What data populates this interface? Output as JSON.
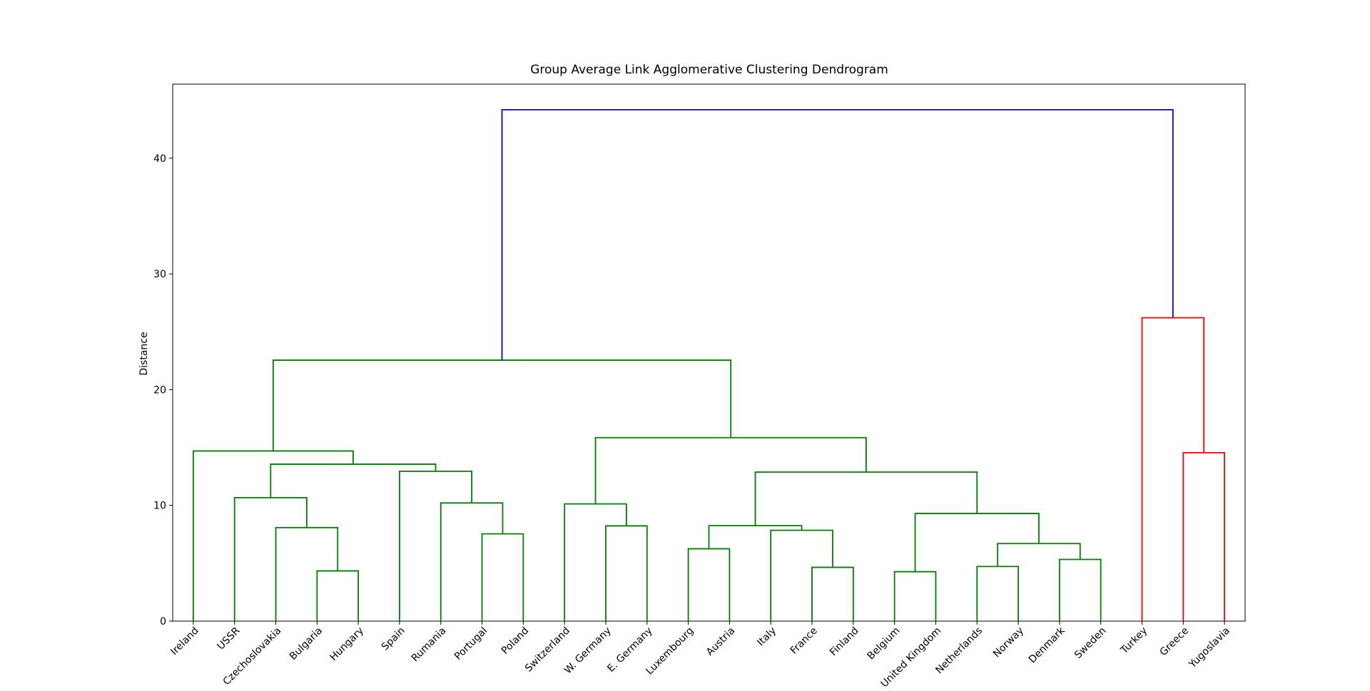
{
  "chart_data": {
    "type": "dendrogram",
    "title": "Group Average Link Agglomerative Clustering Dendrogram",
    "y_label": "Distance",
    "categories": [
      "Ireland",
      "USSR",
      "Czechoslovakia",
      "Bulgaria",
      "Hungary",
      "Spain",
      "Rumania",
      "Portugal",
      "Poland",
      "Switzerland",
      "W. Germany",
      "E. Germany",
      "Luxembourg",
      "Austria",
      "Italy",
      "France",
      "Finland",
      "Belgium",
      "United Kingdom",
      "Netherlands",
      "Norway",
      "Denmark",
      "Sweden",
      "Turkey",
      "Greece",
      "Yugoslavia"
    ],
    "merges": [
      {
        "children": [
          3,
          4
        ],
        "height": 4.34,
        "color": "#008000"
      },
      {
        "children": [
          2,
          26
        ],
        "height": 8.08,
        "color": "#008000"
      },
      {
        "children": [
          1,
          27
        ],
        "height": 10.67,
        "color": "#008000"
      },
      {
        "children": [
          7,
          8
        ],
        "height": 7.54,
        "color": "#008000"
      },
      {
        "children": [
          6,
          29
        ],
        "height": 10.21,
        "color": "#008000"
      },
      {
        "children": [
          5,
          30
        ],
        "height": 12.95,
        "color": "#008000"
      },
      {
        "children": [
          28,
          31
        ],
        "height": 13.56,
        "color": "#008000"
      },
      {
        "children": [
          0,
          32
        ],
        "height": 14.7,
        "color": "#008000"
      },
      {
        "children": [
          10,
          11
        ],
        "height": 8.23,
        "color": "#008000"
      },
      {
        "children": [
          9,
          34
        ],
        "height": 10.13,
        "color": "#008000"
      },
      {
        "children": [
          12,
          13
        ],
        "height": 6.25,
        "color": "#008000"
      },
      {
        "children": [
          15,
          16
        ],
        "height": 4.65,
        "color": "#008000"
      },
      {
        "children": [
          14,
          37
        ],
        "height": 7.85,
        "color": "#008000"
      },
      {
        "children": [
          36,
          38
        ],
        "height": 8.25,
        "color": "#008000"
      },
      {
        "children": [
          17,
          18
        ],
        "height": 4.27,
        "color": "#008000"
      },
      {
        "children": [
          19,
          20
        ],
        "height": 4.72,
        "color": "#008000"
      },
      {
        "children": [
          21,
          22
        ],
        "height": 5.33,
        "color": "#008000"
      },
      {
        "children": [
          41,
          42
        ],
        "height": 6.7,
        "color": "#008000"
      },
      {
        "children": [
          40,
          43
        ],
        "height": 9.3,
        "color": "#008000"
      },
      {
        "children": [
          39,
          44
        ],
        "height": 12.88,
        "color": "#008000"
      },
      {
        "children": [
          35,
          45
        ],
        "height": 15.85,
        "color": "#008000"
      },
      {
        "children": [
          33,
          46
        ],
        "height": 22.55,
        "color": "#008000"
      },
      {
        "children": [
          24,
          25
        ],
        "height": 14.55,
        "color": "#ff0000"
      },
      {
        "children": [
          23,
          48
        ],
        "height": 26.21,
        "color": "#ff0000"
      },
      {
        "children": [
          47,
          49
        ],
        "height": 44.19,
        "color": "#0000ff"
      }
    ],
    "ylim": [
      0,
      46.4
    ],
    "yticks": [
      0,
      10,
      20,
      30,
      40
    ]
  }
}
